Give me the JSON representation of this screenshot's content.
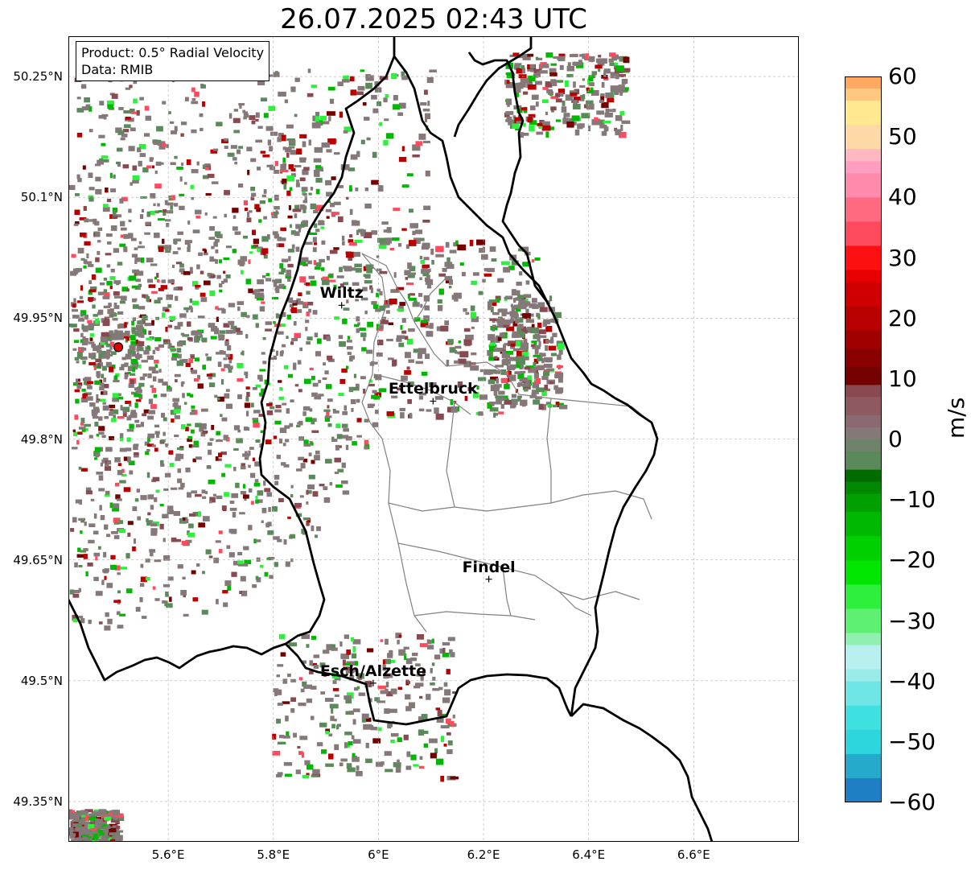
{
  "title": "26.07.2025 02:43 UTC",
  "info": {
    "product": "Product: 0.5° Radial Velocity",
    "data": "Data: RMIB"
  },
  "lat_labels": [
    "50.25°N",
    "50.1°N",
    "49.95°N",
    "49.8°N",
    "49.65°N",
    "49.5°N",
    "49.35°N"
  ],
  "lon_labels": [
    "5.6°E",
    "5.8°E",
    "6°E",
    "6.2°E",
    "6.4°E",
    "6.6°E"
  ],
  "cities": [
    {
      "name": "Wiltz",
      "lon": 5.93,
      "lat": 49.966
    },
    {
      "name": "Ettelbruck",
      "lon": 6.104,
      "lat": 49.847
    },
    {
      "name": "Findel",
      "lon": 6.21,
      "lat": 49.626
    },
    {
      "name": "Esch/Alzette",
      "lon": 5.99,
      "lat": 49.497
    }
  ],
  "radar": {
    "lon": 5.505,
    "lat": 49.914
  },
  "colorbar": {
    "unit": "m/s",
    "ticks": [
      "60",
      "50",
      "40",
      "30",
      "20",
      "10",
      "0",
      "−10",
      "−20",
      "−30",
      "−40",
      "−50",
      "−60"
    ],
    "range": [
      -60,
      60
    ]
  },
  "colors": {
    "radar_site": "#e00000",
    "border": "#000000",
    "canton": "#808080",
    "grid": "#b0b0b0"
  }
}
